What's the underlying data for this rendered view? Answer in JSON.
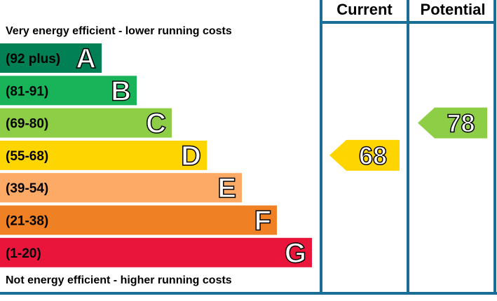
{
  "chart_data": {
    "type": "epc-rating",
    "top_caption": "Very energy efficient - lower running costs",
    "bottom_caption": "Not energy efficient - higher running costs",
    "columns": [
      "Current",
      "Potential"
    ],
    "bands": [
      {
        "range": "(92 plus)",
        "letter": "A",
        "color": "#008054"
      },
      {
        "range": "(81-91)",
        "letter": "B",
        "color": "#19b459"
      },
      {
        "range": "(69-80)",
        "letter": "C",
        "color": "#8dce46"
      },
      {
        "range": "(55-68)",
        "letter": "D",
        "color": "#ffd500"
      },
      {
        "range": "(39-54)",
        "letter": "E",
        "color": "#fcaa65"
      },
      {
        "range": "(21-38)",
        "letter": "F",
        "color": "#ef8023"
      },
      {
        "range": "(1-20)",
        "letter": "G",
        "color": "#e9153b"
      }
    ],
    "current": {
      "value": 68,
      "band": "D",
      "color": "#ffd500"
    },
    "potential": {
      "value": 78,
      "band": "C",
      "color": "#8dce46"
    },
    "frame_color": "#1a6e96"
  }
}
